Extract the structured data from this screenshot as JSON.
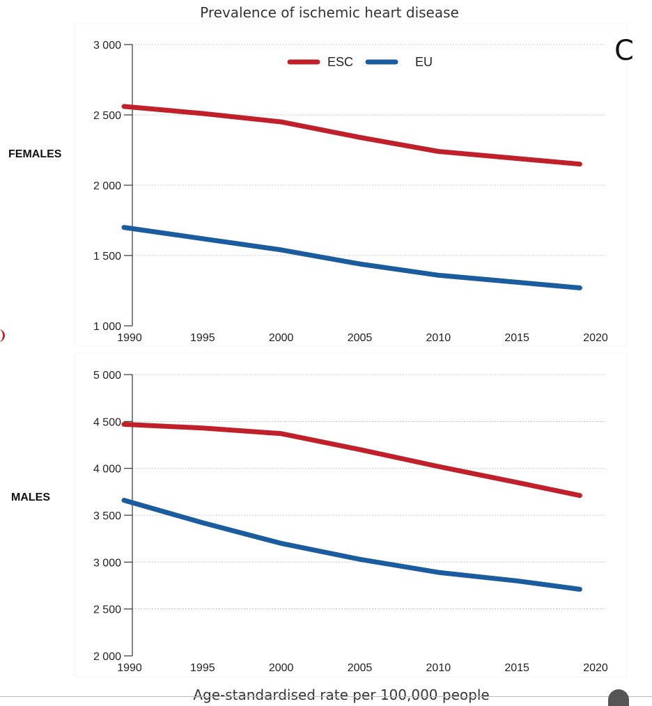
{
  "page": {
    "title": "Prevalence of ischemic heart disease",
    "xlabel": "Age-standardised rate per 100,000 people",
    "background_fragment": "C",
    "legend": [
      {
        "label": "ESC",
        "color": "#c0202a"
      },
      {
        "label": "EU",
        "color": "#1a5c9e"
      }
    ]
  },
  "chart_data": [
    {
      "type": "line",
      "panel": "FEMALES",
      "xlim": [
        1990,
        2020
      ],
      "ylim": [
        1000,
        3000
      ],
      "xticks": [
        "1990",
        "1995",
        "2000",
        "2005",
        "2010",
        "2015",
        "2020"
      ],
      "yticks": [
        "1 000",
        "1 500",
        "2 000",
        "2 500",
        "3 000"
      ],
      "grid": "horizontal-dotted",
      "legend_position": "top-center",
      "x": [
        1990,
        1995,
        2000,
        2005,
        2010,
        2015,
        2019
      ],
      "series": [
        {
          "name": "ESC",
          "color": "#c0202a",
          "values": [
            2560,
            2510,
            2450,
            2340,
            2240,
            2190,
            2150
          ]
        },
        {
          "name": "EU",
          "color": "#1a5c9e",
          "values": [
            1700,
            1620,
            1540,
            1440,
            1360,
            1310,
            1270
          ]
        }
      ]
    },
    {
      "type": "line",
      "panel": "MALES",
      "xlim": [
        1990,
        2020
      ],
      "ylim": [
        2000,
        5000
      ],
      "xticks": [
        "1990",
        "1995",
        "2000",
        "2005",
        "2010",
        "2015",
        "2020"
      ],
      "yticks": [
        "2 000",
        "2 500",
        "3 000",
        "3 500",
        "4 000",
        "4 500",
        "5 000"
      ],
      "grid": "horizontal-dotted",
      "x": [
        1990,
        1995,
        2000,
        2005,
        2010,
        2015,
        2019
      ],
      "series": [
        {
          "name": "ESC",
          "color": "#c0202a",
          "values": [
            4470,
            4430,
            4370,
            4200,
            4020,
            3850,
            3710
          ]
        },
        {
          "name": "EU",
          "color": "#1a5c9e",
          "values": [
            3660,
            3420,
            3200,
            3030,
            2890,
            2800,
            2710
          ]
        }
      ]
    }
  ]
}
